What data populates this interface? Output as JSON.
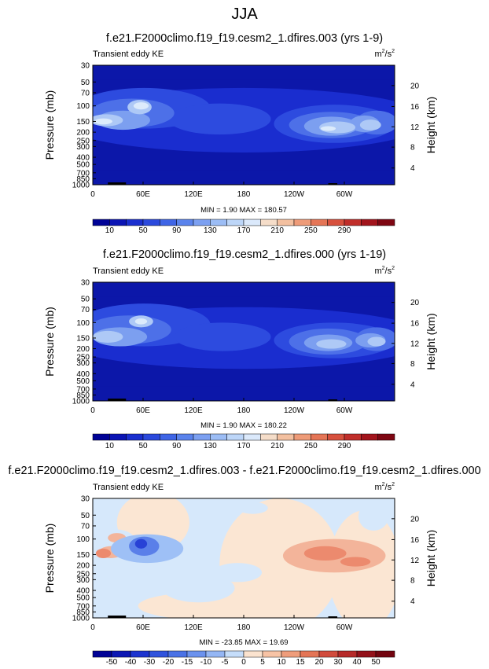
{
  "figure_title": "JJA",
  "chart_data": [
    {
      "type": "heatmap",
      "title": "f.e21.F2000climo.f19_f19.cesm2_1.dfires.003 (yrs 1-9)",
      "left_label": "Transient eddy KE",
      "units_base": "m",
      "units_sup1": "2",
      "units_mid": "/s",
      "units_sup2": "2",
      "xlabel": "",
      "ylabel": "Pressure (mb)",
      "y2label": "Height (km)",
      "x_ticks": [
        "0",
        "60E",
        "120E",
        "180",
        "120W",
        "60W"
      ],
      "y_ticks": [
        "30",
        "50",
        "70",
        "100",
        "150",
        "200",
        "250",
        "300",
        "400",
        "500",
        "700",
        "850",
        "1000"
      ],
      "y2_ticks": [
        "20",
        "16",
        "12",
        "8",
        "4"
      ],
      "min_label": "MIN =",
      "min_value": "1.90",
      "max_label": "MAX =",
      "max_value": "180.57",
      "colorbar_labels": [
        "10",
        "50",
        "90",
        "130",
        "170",
        "210",
        "250",
        "290"
      ],
      "colorbar_colors": [
        "#000296",
        "#0b14b4",
        "#1a2fcf",
        "#2b49dc",
        "#3f65e6",
        "#5a83ec",
        "#7ca0f1",
        "#9cbdf5",
        "#bdd6f8",
        "#dbe9fb",
        "#f5ddc9",
        "#f3c0a0",
        "#ee9b78",
        "#e57556",
        "#d7503d",
        "#c02e2a",
        "#a2141c",
        "#7e0612"
      ],
      "panel_colors": [
        "#0c17a9",
        "#1a2dcf",
        "#2d4bdf",
        "#4d70e8",
        "#7c9ff0",
        "#aec9f6",
        "#dcebfb"
      ],
      "x_range": [
        "0",
        "360"
      ],
      "y_range": [
        "30",
        "1000"
      ]
    },
    {
      "type": "heatmap",
      "title": "f.e21.F2000climo.f19_f19.cesm2_1.dfires.000 (yrs 1-19)",
      "left_label": "Transient eddy KE",
      "units_base": "m",
      "units_sup1": "2",
      "units_mid": "/s",
      "units_sup2": "2",
      "xlabel": "",
      "ylabel": "Pressure (mb)",
      "y2label": "Height (km)",
      "x_ticks": [
        "0",
        "60E",
        "120E",
        "180",
        "120W",
        "60W"
      ],
      "y_ticks": [
        "30",
        "50",
        "70",
        "100",
        "150",
        "200",
        "250",
        "300",
        "400",
        "500",
        "700",
        "850",
        "1000"
      ],
      "y2_ticks": [
        "20",
        "16",
        "12",
        "8",
        "4"
      ],
      "min_label": "MIN =",
      "min_value": "1.90",
      "max_label": "MAX =",
      "max_value": "180.22",
      "colorbar_labels": [
        "10",
        "50",
        "90",
        "130",
        "170",
        "210",
        "250",
        "290"
      ],
      "colorbar_colors": [
        "#000296",
        "#0b14b4",
        "#1a2fcf",
        "#2b49dc",
        "#3f65e6",
        "#5a83ec",
        "#7ca0f1",
        "#9cbdf5",
        "#bdd6f8",
        "#dbe9fb",
        "#f5ddc9",
        "#f3c0a0",
        "#ee9b78",
        "#e57556",
        "#d7503d",
        "#c02e2a",
        "#a2141c",
        "#7e0612"
      ],
      "panel_colors": [
        "#0c17a9",
        "#1a2dcf",
        "#2d4bdf",
        "#4d70e8",
        "#7c9ff0",
        "#aec9f6",
        "#dcebfb"
      ],
      "x_range": [
        "0",
        "360"
      ],
      "y_range": [
        "30",
        "1000"
      ]
    },
    {
      "type": "heatmap",
      "title": "f.e21.F2000climo.f19_f19.cesm2_1.dfires.003 - f.e21.F2000climo.f19_f19.cesm2_1.dfires.000",
      "left_label": "Transient eddy KE",
      "units_base": "m",
      "units_sup1": "2",
      "units_mid": "/s",
      "units_sup2": "2",
      "xlabel": "",
      "ylabel": "Pressure (mb)",
      "y2label": "Height (km)",
      "x_ticks": [
        "0",
        "60E",
        "120E",
        "180",
        "120W",
        "60W"
      ],
      "y_ticks": [
        "30",
        "50",
        "70",
        "100",
        "150",
        "200",
        "250",
        "300",
        "400",
        "500",
        "700",
        "850",
        "1000"
      ],
      "y2_ticks": [
        "20",
        "16",
        "12",
        "8",
        "4"
      ],
      "min_label": "MIN =",
      "min_value": "-23.85",
      "max_label": "MAX =",
      "max_value": "19.69",
      "colorbar_labels": [
        "-50",
        "-40",
        "-30",
        "-20",
        "-15",
        "-10",
        "-5",
        "0",
        "5",
        "10",
        "15",
        "20",
        "30",
        "40",
        "50"
      ],
      "colorbar_colors": [
        "#000296",
        "#0c17b3",
        "#1d34cf",
        "#3053dd",
        "#4a72e6",
        "#6b92ee",
        "#94b6f4",
        "#c5ddfa",
        "#fbe3cf",
        "#f7c3a5",
        "#ef9d7b",
        "#e47556",
        "#d14b3c",
        "#b62a29",
        "#93111a",
        "#730510"
      ],
      "panel_colors": [
        "#d6e8fb",
        "#fbe6d3",
        "#f3b49a",
        "#ec8a6e",
        "#9ec0f6",
        "#5a7fe9",
        "#2841d6"
      ],
      "x_range": [
        "0",
        "360"
      ],
      "y_range": [
        "30",
        "1000"
      ]
    }
  ]
}
